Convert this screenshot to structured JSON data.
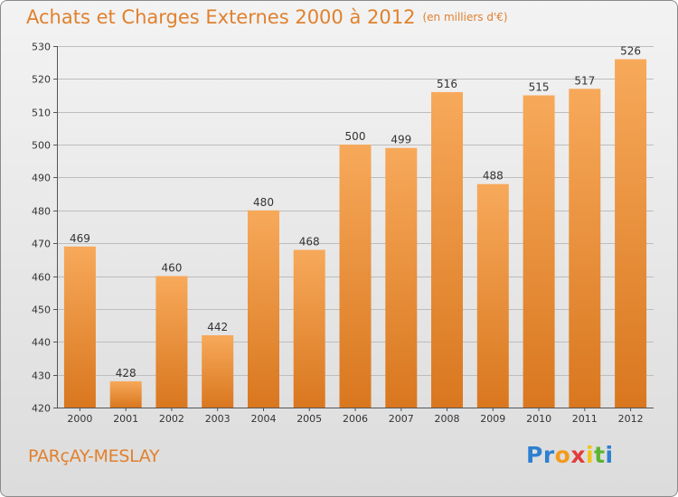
{
  "header": {
    "title": "Achats et Charges Externes 2000 à 2012",
    "unit": "(en milliers d'€)"
  },
  "footer": {
    "city": "PARçAY-MESLAY",
    "logo": [
      "P",
      "r",
      "o",
      "x",
      "i",
      "t",
      "i"
    ],
    "logo_colors": [
      "#2f7fd1",
      "#2f7fd1",
      "#f39a1e",
      "#e23c3c",
      "#f2c31a",
      "#5cb531",
      "#2f7fd1"
    ]
  },
  "colors": {
    "bar_light": "#f7a95a",
    "bar_dark": "#d9771f",
    "grid": "#bdbdbd",
    "text_accent": "#e0812e"
  },
  "chart_data": {
    "type": "bar",
    "title": "Achats et Charges Externes 2000 à 2012",
    "subtitle": "(en milliers d'€)",
    "categories": [
      "2000",
      "2001",
      "2002",
      "2003",
      "2004",
      "2005",
      "2006",
      "2007",
      "2008",
      "2009",
      "2010",
      "2011",
      "2012"
    ],
    "values": [
      469,
      428,
      460,
      442,
      480,
      468,
      500,
      499,
      516,
      488,
      515,
      517,
      526
    ],
    "ylim": [
      420,
      530
    ],
    "yticks": [
      420,
      430,
      440,
      450,
      460,
      470,
      480,
      490,
      500,
      510,
      520,
      530
    ],
    "grid": true,
    "xlabel": "",
    "ylabel": ""
  }
}
